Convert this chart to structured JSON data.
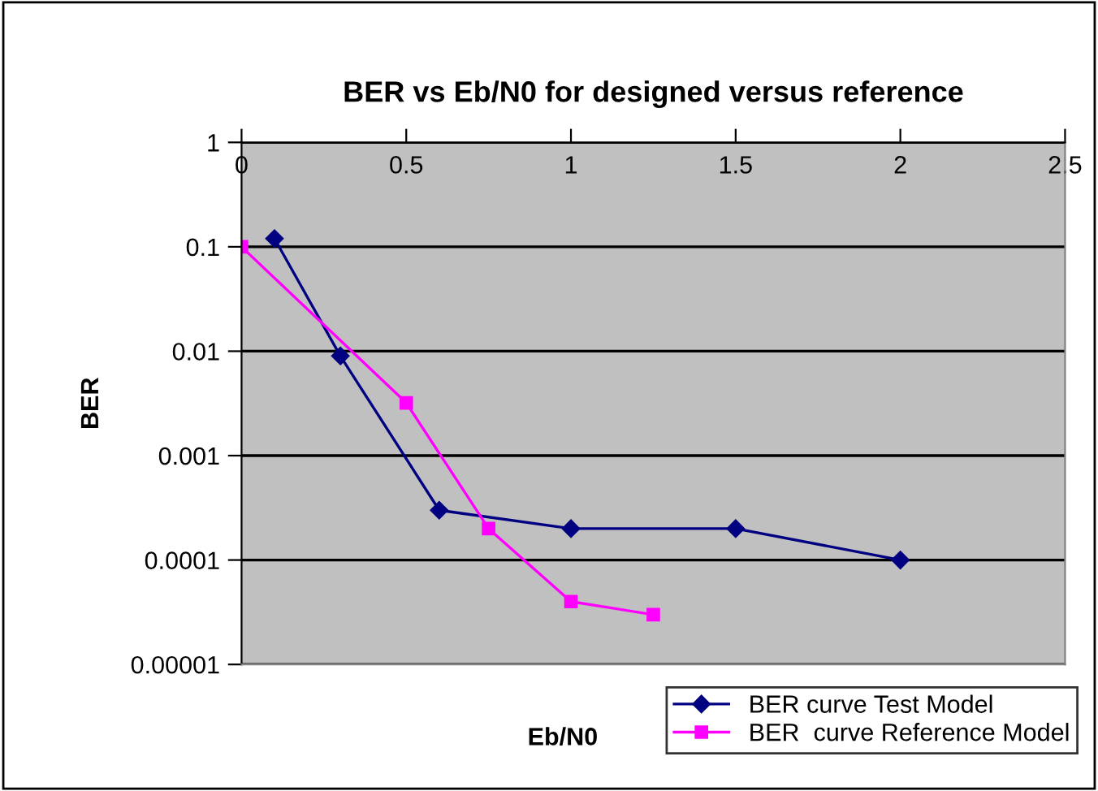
{
  "chart_data": {
    "type": "line",
    "title": "BER vs Eb/N0 for designed versus reference",
    "xlabel": "Eb/N0",
    "ylabel": "BER",
    "log": "y",
    "grid": "y",
    "legend": "bottom right",
    "xlim": [
      0,
      2.5
    ],
    "xticks": [
      0,
      0.5,
      1,
      1.5,
      2,
      2.5
    ],
    "ylim": [
      1e-05,
      1
    ],
    "yticks": [
      {
        "value": 1e-05,
        "label": "0.00001"
      },
      {
        "value": 0.0001,
        "label": "0.0001"
      },
      {
        "value": 0.001,
        "label": "0.001"
      },
      {
        "value": 0.01,
        "label": "0.01"
      },
      {
        "value": 0.1,
        "label": "0.1"
      },
      {
        "value": 1,
        "label": "1"
      }
    ],
    "series": [
      {
        "name": "BER curve Test Model",
        "color": "#000080",
        "marker": "diamond",
        "x": [
          0.1,
          0.3,
          0.6,
          1,
          1.5,
          2
        ],
        "values": [
          0.12,
          0.009,
          0.0003,
          0.0002,
          0.0002,
          0.0001
        ]
      },
      {
        "name": "BER  curve Reference Model",
        "color": "#ff00ff",
        "marker": "square",
        "x": [
          0,
          0.5,
          0.75,
          1,
          1.25
        ],
        "values": [
          0.1,
          0.0032,
          0.0002,
          4e-05,
          3e-05
        ]
      }
    ]
  }
}
